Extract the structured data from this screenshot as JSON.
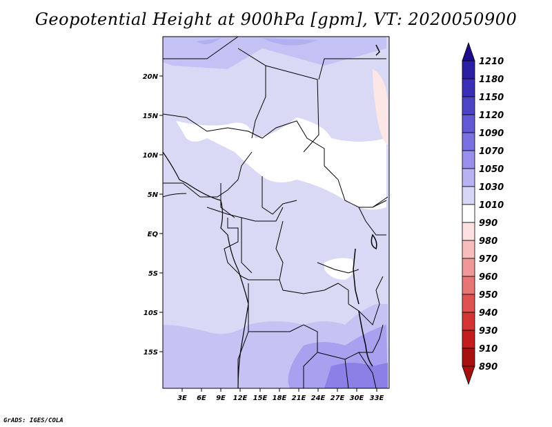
{
  "title": "Geopotential Height at 900hPa [gpm], VT: 2020050900",
  "credit": "GrADS: IGES/COLA",
  "map": {
    "region": "Central & Southern-Central Africa",
    "lat_ticks": [
      "20N",
      "15N",
      "10N",
      "5N",
      "EQ",
      "5S",
      "10S",
      "15S"
    ],
    "lon_ticks": [
      "3E",
      "6E",
      "9E",
      "12E",
      "15E",
      "18E",
      "21E",
      "24E",
      "27E",
      "30E",
      "33E"
    ]
  },
  "colorbar": {
    "levels": [
      "1210",
      "1180",
      "1150",
      "1120",
      "1090",
      "1070",
      "1050",
      "1030",
      "1010",
      "990",
      "980",
      "970",
      "960",
      "950",
      "940",
      "930",
      "910",
      "890"
    ],
    "colors": [
      "#1d0d8a",
      "#2a1fa3",
      "#3a30b8",
      "#4d43c9",
      "#6358d6",
      "#7a70e0",
      "#9890ea",
      "#b8b2f2",
      "#d8d6f8",
      "#ffffff",
      "#fde0e0",
      "#f7bcbc",
      "#f09898",
      "#e87474",
      "#e05252",
      "#d43434",
      "#c21e1e",
      "#a80f0f"
    ]
  }
}
